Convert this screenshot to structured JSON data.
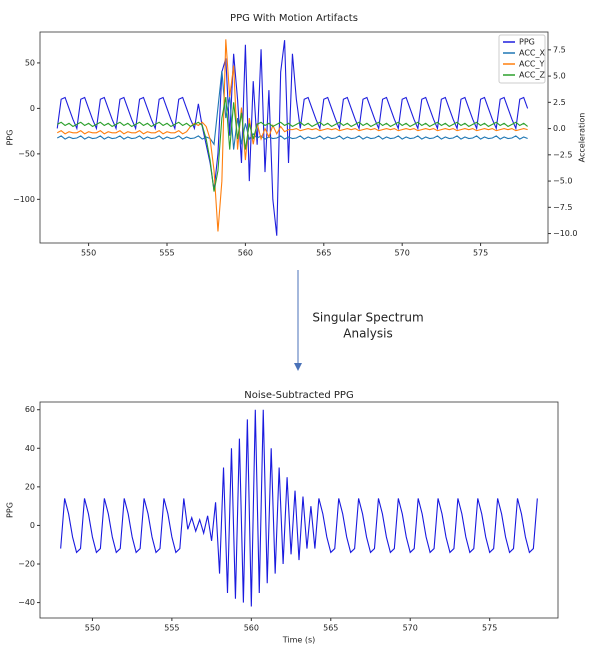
{
  "chart_data": [
    {
      "type": "line",
      "title": "PPG With Motion Artifacts",
      "ylabel": "PPG",
      "y2label": "Acceleration",
      "legend": "upper right",
      "xlim": [
        546.9,
        579.3
      ],
      "xticks": [
        550,
        555,
        560,
        565,
        570,
        575
      ],
      "ylim": [
        -148,
        84
      ],
      "yticks": [
        {
          "value": -100,
          "label": "−100"
        },
        {
          "value": -50,
          "label": "−50"
        },
        0,
        50
      ],
      "y2lim": [
        -10.9,
        9.2
      ],
      "y2ticks": [
        {
          "value": -10,
          "label": "−10.0"
        },
        {
          "value": -7.5,
          "label": "−7.5"
        },
        {
          "value": -5,
          "label": "−5.0"
        },
        {
          "value": -2.5,
          "label": "−2.5"
        },
        {
          "value": 0,
          "label": "0.0"
        },
        {
          "value": 2.5,
          "label": "2.5"
        },
        {
          "value": 5,
          "label": "5.0"
        },
        {
          "value": 7.5,
          "label": "7.5"
        }
      ],
      "x": [
        548,
        548.25,
        548.5,
        548.75,
        549,
        549.25,
        549.5,
        549.75,
        550,
        550.25,
        550.5,
        550.75,
        551,
        551.25,
        551.5,
        551.75,
        552,
        552.25,
        552.5,
        552.75,
        553,
        553.25,
        553.5,
        553.75,
        554,
        554.25,
        554.5,
        554.75,
        555,
        555.25,
        555.5,
        555.75,
        556,
        556.25,
        556.5,
        556.75,
        557,
        557.25,
        557.5,
        557.75,
        558,
        558.25,
        558.5,
        558.75,
        559,
        559.25,
        559.5,
        559.75,
        560,
        560.25,
        560.5,
        560.75,
        561,
        561.25,
        561.5,
        561.75,
        562,
        562.25,
        562.5,
        562.75,
        563,
        563.25,
        563.5,
        563.75,
        564,
        564.25,
        564.5,
        564.75,
        565,
        565.25,
        565.5,
        565.75,
        566,
        566.25,
        566.5,
        566.75,
        567,
        567.25,
        567.5,
        567.75,
        568,
        568.25,
        568.5,
        568.75,
        569,
        569.25,
        569.5,
        569.75,
        570,
        570.25,
        570.5,
        570.75,
        571,
        571.25,
        571.5,
        571.75,
        572,
        572.25,
        572.5,
        572.75,
        573,
        573.25,
        573.5,
        573.75,
        574,
        574.25,
        574.5,
        574.75,
        575,
        575.25,
        575.5,
        575.75,
        576,
        576.25,
        576.5,
        576.75,
        577,
        577.25,
        577.5,
        577.75,
        578
      ],
      "series": [
        {
          "name": "PPG",
          "color": "#1f1fdd",
          "axis": "y",
          "values": [
            -22,
            10,
            12,
            0,
            -12,
            -22,
            10,
            12,
            0,
            -12,
            -22,
            10,
            12,
            0,
            -12,
            -22,
            10,
            12,
            0,
            -12,
            -22,
            10,
            12,
            0,
            -12,
            -22,
            10,
            12,
            0,
            -12,
            -22,
            10,
            12,
            0,
            -12,
            -22,
            5,
            -20,
            -40,
            -60,
            -90,
            -50,
            40,
            55,
            -30,
            60,
            10,
            -60,
            70,
            -80,
            30,
            -40,
            65,
            -70,
            20,
            -100,
            -140,
            40,
            75,
            -60,
            60,
            10,
            -22,
            10,
            12,
            0,
            -12,
            -22,
            10,
            12,
            0,
            -12,
            -22,
            10,
            12,
            0,
            -12,
            -22,
            10,
            12,
            0,
            -12,
            -22,
            10,
            12,
            0,
            -12,
            -22,
            10,
            12,
            0,
            -12,
            -22,
            10,
            12,
            0,
            -12,
            -22,
            10,
            12,
            0,
            -12,
            -22,
            10,
            12,
            0,
            -12,
            -22,
            10,
            12,
            0,
            -12,
            -22,
            10,
            12,
            0,
            -12,
            -22,
            10,
            12,
            0
          ]
        },
        {
          "name": "ACC_X",
          "color": "#1f77b4",
          "axis": "y2",
          "values": [
            -0.9,
            -0.7,
            -1.0,
            -0.8,
            -0.95,
            -0.9,
            -0.7,
            -1.0,
            -0.8,
            -0.95,
            -0.9,
            -0.7,
            -1.0,
            -0.8,
            -0.95,
            -0.9,
            -0.7,
            -1.0,
            -0.8,
            -0.95,
            -0.9,
            -0.7,
            -1.0,
            -0.8,
            -0.95,
            -0.9,
            -0.7,
            -1.0,
            -0.8,
            -0.95,
            -0.9,
            -0.7,
            -1.0,
            -0.8,
            -0.95,
            -0.9,
            -0.7,
            -1.0,
            -0.8,
            -0.95,
            -1.5,
            2,
            5.5,
            1,
            3,
            -2,
            1,
            -1.5,
            0.5,
            -1,
            -0.5,
            -0.9,
            -0.7,
            -1.0,
            -0.8,
            -0.95,
            -0.9,
            -0.7,
            -1.0,
            -0.8,
            -0.95,
            -0.9,
            -0.7,
            -1.0,
            -0.8,
            -0.95,
            -0.9,
            -0.7,
            -1.0,
            -0.8,
            -0.95,
            -0.9,
            -0.7,
            -1.0,
            -0.8,
            -0.95,
            -0.9,
            -0.7,
            -1.0,
            -0.8,
            -0.95,
            -0.9,
            -0.7,
            -1.0,
            -0.8,
            -0.95,
            -0.9,
            -0.7,
            -1.0,
            -0.8,
            -0.95,
            -0.9,
            -0.7,
            -1.0,
            -0.8,
            -0.95,
            -0.9,
            -0.7,
            -1.0,
            -0.8,
            -0.95,
            -0.9,
            -0.7,
            -1.0,
            -0.8,
            -0.95,
            -0.9,
            -0.7,
            -1.0,
            -0.8,
            -0.95,
            -0.9,
            -0.7,
            -1.0,
            -0.8,
            -0.95,
            -0.9,
            -0.7,
            -1.0,
            -0.8,
            -0.95
          ]
        },
        {
          "name": "ACC_Y",
          "color": "#ff7f0e",
          "axis": "y2",
          "values": [
            -0.4,
            -0.2,
            -0.5,
            -0.3,
            -0.4,
            -0.4,
            -0.2,
            -0.5,
            -0.3,
            -0.4,
            -0.4,
            -0.2,
            -0.5,
            -0.3,
            -0.4,
            -0.4,
            -0.2,
            -0.5,
            -0.3,
            -0.4,
            -0.4,
            -0.2,
            -0.5,
            -0.3,
            -0.4,
            -0.4,
            -0.2,
            -0.5,
            -0.3,
            -0.4,
            -0.4,
            -0.2,
            -0.5,
            -0.3,
            0.2,
            0.5,
            0.3,
            0.6,
            0.2,
            -1,
            -4,
            -9.8,
            -5,
            8.5,
            3,
            6,
            -2,
            2,
            -3,
            1,
            -1.5,
            0.5,
            -1,
            0,
            -0.8,
            0.3,
            -0.5,
            0.2,
            -0.3,
            -0.1,
            -0.1,
            0,
            -0.2,
            -0.1,
            0,
            -0.1,
            0,
            -0.2,
            -0.1,
            0,
            -0.1,
            0,
            -0.2,
            -0.1,
            0,
            -0.1,
            0,
            -0.2,
            -0.1,
            0,
            -0.1,
            0,
            -0.2,
            -0.1,
            0,
            -0.1,
            0,
            -0.2,
            -0.1,
            0,
            -0.1,
            0,
            -0.2,
            -0.1,
            0,
            -0.1,
            0,
            -0.2,
            -0.1,
            0,
            -0.1,
            0,
            -0.2,
            -0.1,
            0,
            -0.1,
            0,
            -0.2,
            -0.1,
            0,
            -0.1,
            0,
            -0.2,
            -0.1,
            0,
            -0.1,
            0,
            -0.2,
            -0.1,
            0,
            -0.1
          ]
        },
        {
          "name": "ACC_Z",
          "color": "#2ca02c",
          "axis": "y2",
          "values": [
            0.4,
            0.6,
            0.3,
            0.5,
            0.2,
            0.4,
            0.6,
            0.3,
            0.5,
            0.2,
            0.4,
            0.6,
            0.3,
            0.5,
            0.2,
            0.4,
            0.6,
            0.3,
            0.5,
            0.2,
            0.4,
            0.6,
            0.3,
            0.5,
            0.2,
            0.4,
            0.6,
            0.3,
            0.5,
            0.2,
            0.4,
            0.6,
            0.3,
            0.5,
            0.2,
            0.4,
            0.6,
            0.3,
            -1,
            -3,
            -6,
            -4,
            1,
            3,
            -2,
            2.5,
            -1,
            1.5,
            -2,
            0.5,
            -1,
            0.4,
            0.6,
            0.3,
            0.5,
            0.2,
            0.4,
            0.6,
            0.3,
            0.5,
            0.2,
            0.4,
            0.6,
            0.3,
            0.5,
            0.2,
            0.4,
            0.6,
            0.3,
            0.5,
            0.2,
            0.4,
            0.6,
            0.3,
            0.5,
            0.2,
            0.4,
            0.6,
            0.3,
            0.5,
            0.2,
            0.4,
            0.6,
            0.3,
            0.5,
            0.2,
            0.4,
            0.6,
            0.3,
            0.5,
            0.2,
            0.4,
            0.6,
            0.3,
            0.5,
            0.2,
            0.4,
            0.6,
            0.3,
            0.5,
            0.2,
            0.4,
            0.6,
            0.3,
            0.5,
            0.2,
            0.4,
            0.6,
            0.3,
            0.5,
            0.2,
            0.4,
            0.6,
            0.3,
            0.5,
            0.2,
            0.4,
            0.6,
            0.3,
            0.5,
            0.2
          ]
        }
      ]
    },
    {
      "type": "line",
      "title": "Noise-Subtracted PPG",
      "xlabel": "Time (s)",
      "ylabel": "PPG",
      "xlim": [
        546.7,
        579.3
      ],
      "xticks": [
        550,
        555,
        560,
        565,
        570,
        575
      ],
      "ylim": [
        -48,
        64
      ],
      "yticks": [
        {
          "value": -40,
          "label": "−40"
        },
        {
          "value": -20,
          "label": "−20"
        },
        0,
        20,
        40,
        60
      ],
      "x": [
        548,
        548.25,
        548.5,
        548.75,
        549,
        549.25,
        549.5,
        549.75,
        550,
        550.25,
        550.5,
        550.75,
        551,
        551.25,
        551.5,
        551.75,
        552,
        552.25,
        552.5,
        552.75,
        553,
        553.25,
        553.5,
        553.75,
        554,
        554.25,
        554.5,
        554.75,
        555,
        555.25,
        555.5,
        555.75,
        556,
        556.25,
        556.5,
        556.75,
        557,
        557.25,
        557.5,
        557.75,
        558,
        558.25,
        558.5,
        558.75,
        559,
        559.25,
        559.5,
        559.75,
        560,
        560.25,
        560.5,
        560.75,
        561,
        561.25,
        561.5,
        561.75,
        562,
        562.25,
        562.5,
        562.75,
        563,
        563.25,
        563.5,
        563.75,
        564,
        564.25,
        564.5,
        564.75,
        565,
        565.25,
        565.5,
        565.75,
        566,
        566.25,
        566.5,
        566.75,
        567,
        567.25,
        567.5,
        567.75,
        568,
        568.25,
        568.5,
        568.75,
        569,
        569.25,
        569.5,
        569.75,
        570,
        570.25,
        570.5,
        570.75,
        571,
        571.25,
        571.5,
        571.75,
        572,
        572.25,
        572.5,
        572.75,
        573,
        573.25,
        573.5,
        573.75,
        574,
        574.25,
        574.5,
        574.75,
        575,
        575.25,
        575.5,
        575.75,
        576,
        576.25,
        576.5,
        576.75,
        577,
        577.25,
        577.5,
        577.75,
        578
      ],
      "series": [
        {
          "color": "#1a1adf",
          "values": [
            -12,
            14,
            6,
            -6,
            -14,
            -12,
            14,
            6,
            -6,
            -14,
            -12,
            14,
            6,
            -6,
            -14,
            -12,
            14,
            6,
            -6,
            -14,
            -12,
            14,
            6,
            -6,
            -14,
            -12,
            14,
            6,
            -6,
            -14,
            -12,
            14,
            -2,
            4,
            -3,
            3,
            -4,
            5,
            -8,
            12,
            -25,
            30,
            -35,
            40,
            -38,
            45,
            -40,
            55,
            -42,
            60,
            -35,
            60,
            -30,
            40,
            -25,
            30,
            -20,
            25,
            -15,
            18,
            -18,
            15,
            -12,
            10,
            -12,
            14,
            6,
            -6,
            -14,
            -12,
            14,
            6,
            -6,
            -14,
            -12,
            14,
            6,
            -6,
            -14,
            -12,
            14,
            6,
            -6,
            -14,
            -12,
            14,
            6,
            -6,
            -14,
            -12,
            14,
            6,
            -6,
            -14,
            -12,
            14,
            6,
            -6,
            -14,
            -12,
            14,
            6,
            -6,
            -14,
            -12,
            14,
            6,
            -6,
            -14,
            -12,
            14,
            6,
            -6,
            -14,
            -12,
            14,
            6,
            -6,
            -14,
            -12,
            14
          ]
        }
      ]
    }
  ],
  "annotation": {
    "lines": [
      "Singular Spectrum",
      "Analysis"
    ]
  }
}
